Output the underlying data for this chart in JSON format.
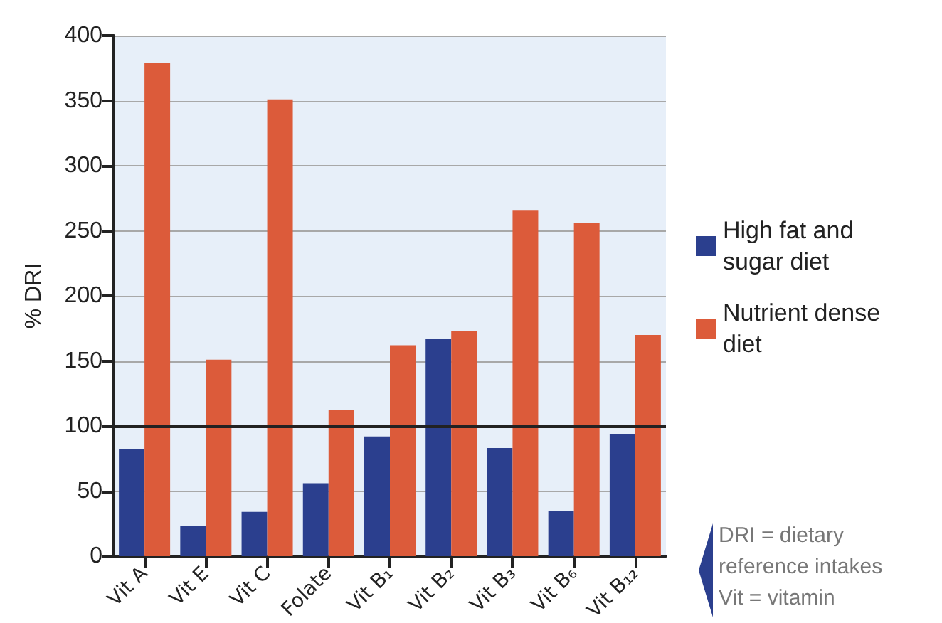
{
  "chart_data": {
    "type": "bar",
    "ylabel": "% DRI",
    "categories": [
      "Vit A",
      "Vit E",
      "Vit C",
      "Folate",
      "Vit B₁",
      "Vit B₂",
      "Vit B₃",
      "Vit B₆",
      "Vit B₁₂"
    ],
    "series": [
      {
        "name": "High fat and sugar diet",
        "color": "#2b3f8e",
        "values": [
          82,
          23,
          34,
          56,
          92,
          167,
          83,
          35,
          94
        ]
      },
      {
        "name": "Nutrient dense diet",
        "color": "#dc5b3a",
        "values": [
          379,
          151,
          351,
          112,
          162,
          173,
          266,
          256,
          170
        ]
      }
    ],
    "ylim": [
      0,
      400
    ],
    "yticks": [
      0,
      50,
      100,
      150,
      200,
      250,
      300,
      350,
      400
    ],
    "grid": "y",
    "legend": "right",
    "ref_lines": [
      {
        "axis": "y",
        "value": 100,
        "color": "#222222"
      }
    ],
    "annotations": [
      "DRI = dietary reference intakes\nVit = vitamin"
    ]
  }
}
